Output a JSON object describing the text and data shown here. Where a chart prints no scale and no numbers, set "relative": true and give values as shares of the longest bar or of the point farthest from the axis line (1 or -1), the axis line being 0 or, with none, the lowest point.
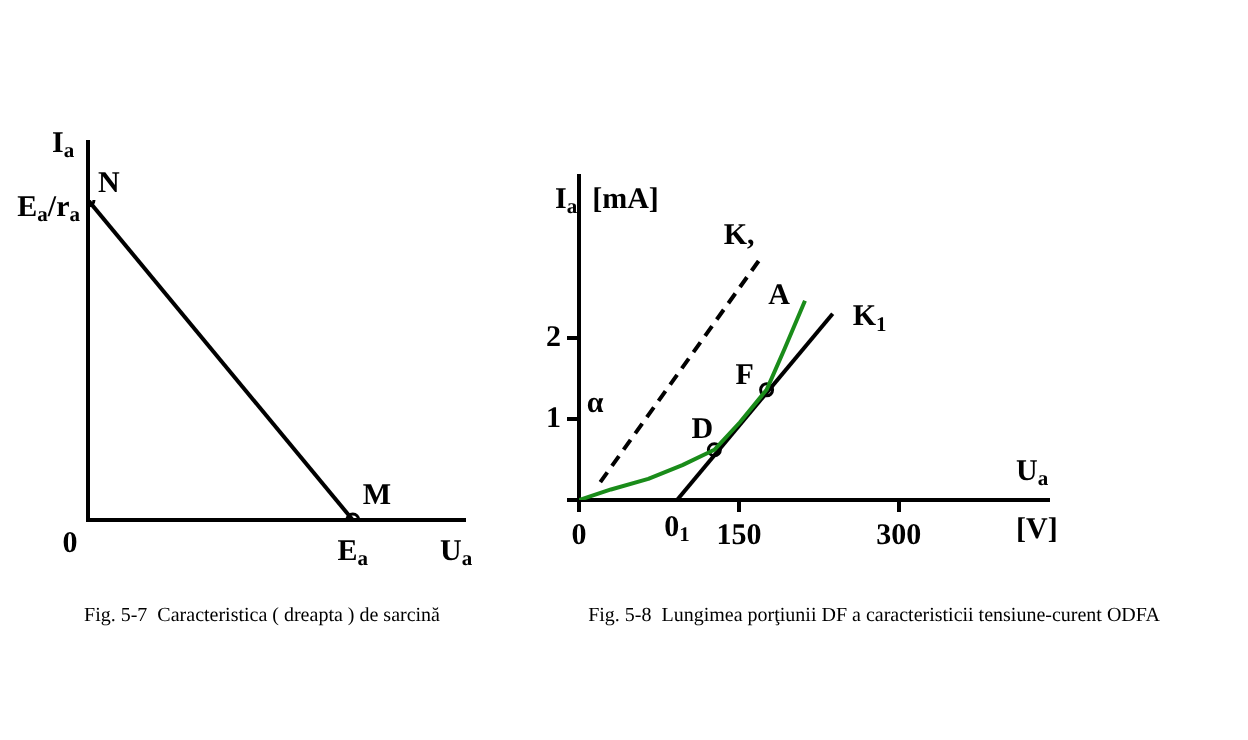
{
  "chart_data": [
    {
      "type": "line",
      "title": "Fig. 5-7  Caracteristica ( dreapta ) de sarcină",
      "xlabel": "U$_{a}$",
      "ylabel": "I$_{a}$",
      "relative": true,
      "marker": "circle",
      "grid": false,
      "legend": false,
      "categories": [
        null,
        null
      ],
      "series": [
        {
          "color": "#000000",
          "values": [
            1,
            0
          ]
        }
      ],
      "annotations": [
        "N",
        "M",
        "E$_{a}$",
        "E$_{a}$/r$_{a}$",
        "0"
      ]
    },
    {
      "type": "line",
      "title": "Fig. 5-8  Lungimea porţiunii DF a caracteristicii tensiune-curent ODFA",
      "xlabel": "U$_{a}$ [V]",
      "ylabel": "I$_{a}$  [mA]",
      "xlim": [
        0,
        440
      ],
      "ylim": [
        0,
        4
      ],
      "xticks": [
        0,
        150,
        300
      ],
      "yticks": [
        {
          "value": 0,
          "label": null
        },
        1,
        2
      ],
      "grid": false,
      "legend": false,
      "marker": "none",
      "series": [
        {
          "color": "#1a8c1a",
          "x": [
            0,
            30,
            65,
            97,
            127,
            151,
            176,
            193,
            212
          ],
          "values": [
            0,
            0.13,
            0.26,
            0.43,
            0.62,
            0.96,
            1.36,
            1.87,
            2.46
          ]
        },
        {
          "color": "#000000",
          "x": [
            92,
            238
          ],
          "values": [
            0,
            2.3
          ]
        },
        {
          "color": "#000000",
          "line_style": "dashed",
          "x": [
            20,
            169
          ],
          "values": [
            0.22,
            2.96
          ]
        },
        {
          "type": "scatter",
          "color": "#000000",
          "marker": "circle",
          "x": [
            127,
            176
          ],
          "values": [
            0.62,
            1.36
          ]
        }
      ],
      "annotations": [
        {
          "text": "K,",
          "x": 169,
          "y": 2.96
        },
        {
          "text": "A",
          "x": 212,
          "y": 2.46
        },
        {
          "text": "K$_{1}$",
          "x": 238,
          "y": 2.3
        },
        {
          "text": "F",
          "x": 176,
          "y": 1.36
        },
        {
          "text": "D",
          "x": 127,
          "y": 0.62
        },
        "α",
        {
          "text": "0$_{1}$",
          "x": 92,
          "y": 0
        }
      ]
    }
  ]
}
